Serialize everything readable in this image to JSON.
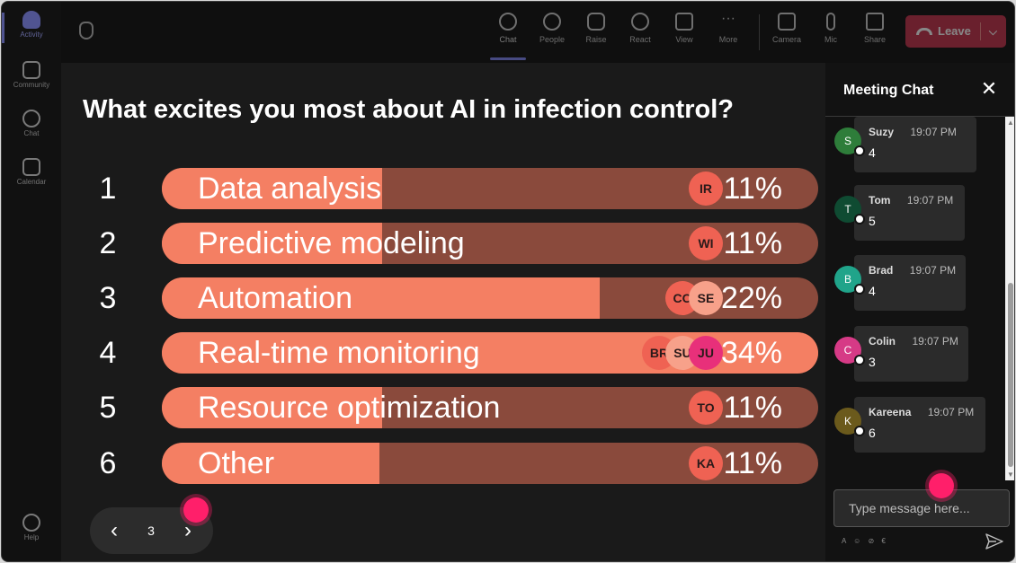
{
  "rail": {
    "items": [
      {
        "label": "Activity",
        "active": true
      },
      {
        "label": "Community"
      },
      {
        "label": "Chat"
      },
      {
        "label": "Calendar"
      },
      {
        "label": "Help"
      }
    ]
  },
  "toolbar": {
    "items": [
      {
        "label": "Chat",
        "icon": "chat-icon",
        "active": true
      },
      {
        "label": "People",
        "icon": "people-icon"
      },
      {
        "label": "Raise",
        "icon": "hand-icon"
      },
      {
        "label": "React",
        "icon": "smile-icon"
      },
      {
        "label": "View",
        "icon": "grid-icon"
      },
      {
        "label": "More",
        "icon": "more-icon"
      },
      {
        "label": "Camera",
        "icon": "camera-icon"
      },
      {
        "label": "Mic",
        "icon": "mic-icon"
      },
      {
        "label": "Share",
        "icon": "share-icon"
      }
    ],
    "leave_label": "Leave",
    "leave_color": "#c4314b"
  },
  "poll": {
    "question": "What excites you most about AI in infection control?",
    "bar_color": "#f47f63",
    "track_color": "#8a4a3c",
    "options": [
      {
        "num": "1",
        "label": "Data analysis",
        "percent": "11%",
        "fill": 0.335,
        "avatars": [
          "IR"
        ]
      },
      {
        "num": "2",
        "label": "Predictive modeling",
        "percent": "11%",
        "fill": 0.335,
        "avatars": [
          "WI"
        ]
      },
      {
        "num": "3",
        "label": "Automation",
        "percent": "22%",
        "fill": 0.667,
        "avatars": [
          "CO",
          "SE"
        ]
      },
      {
        "num": "4",
        "label": "Real-time monitoring",
        "percent": "34%",
        "fill": 1.0,
        "avatars": [
          "BR",
          "SU",
          "JU"
        ]
      },
      {
        "num": "5",
        "label": "Resource optimization",
        "percent": "11%",
        "fill": 0.335,
        "avatars": [
          "TO"
        ]
      },
      {
        "num": "6",
        "label": "Other",
        "percent": "11%",
        "fill": 0.332,
        "avatars": [
          "KA"
        ]
      }
    ]
  },
  "pager": {
    "page": "3",
    "prev": "‹",
    "next": "›"
  },
  "chat": {
    "title": "Meeting Chat",
    "messages": [
      {
        "initial": "S",
        "name": "Suzy",
        "time": "19:07 PM",
        "text": "4",
        "color": "#2e7d3a"
      },
      {
        "initial": "T",
        "name": "Tom",
        "time": "19:07 PM",
        "text": "5",
        "color": "#0f4b32"
      },
      {
        "initial": "B",
        "name": "Brad",
        "time": "19:07 PM",
        "text": "4",
        "color": "#20a48a"
      },
      {
        "initial": "C",
        "name": "Colin",
        "time": "19:07 PM",
        "text": "3",
        "color": "#d63a86"
      },
      {
        "initial": "K",
        "name": "Kareena",
        "time": "19:07 PM",
        "text": "6",
        "color": "#6b5a1c"
      }
    ],
    "input_placeholder": "Type message here..."
  }
}
